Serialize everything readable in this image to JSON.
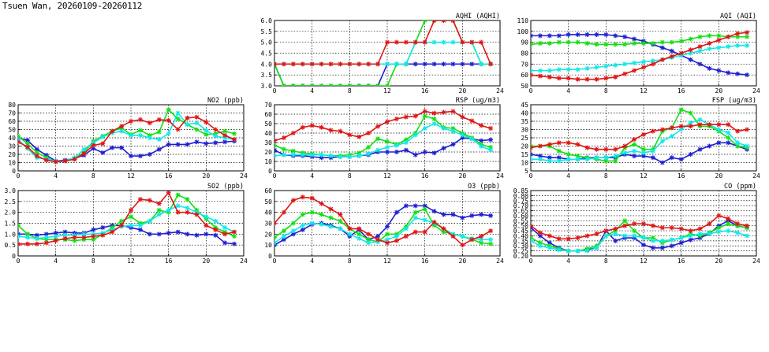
{
  "page_title": "Tsuen Wan, 20260109-20260112",
  "colors": {
    "blue": "#1f1fd0",
    "green": "#11e011",
    "cyan": "#11e8e8",
    "red": "#e01515"
  },
  "chart_data": [
    {
      "id": "aqhi",
      "type": "line",
      "title": "AQHI (AQHI)",
      "xlim": [
        0,
        24
      ],
      "ylim": [
        3,
        6
      ],
      "xticks": [
        "0",
        "4",
        "8",
        "12",
        "16",
        "20",
        "24"
      ],
      "yticks": [
        "3.0",
        "3.5",
        "4.0",
        "4.5",
        "5.0",
        "5.5",
        "6.0"
      ],
      "grid": true,
      "series": [
        {
          "color": "blue",
          "values": [
            4,
            3,
            3,
            3,
            3,
            3,
            3,
            3,
            3,
            3,
            3,
            3,
            4,
            4,
            4,
            4,
            4,
            4,
            4,
            4,
            4,
            4,
            4,
            4
          ]
        },
        {
          "color": "green",
          "values": [
            4,
            3,
            3,
            3,
            3,
            3,
            3,
            3,
            3,
            3,
            3,
            3,
            3,
            4,
            4,
            5,
            6,
            6,
            6,
            6,
            5,
            5,
            4,
            4
          ]
        },
        {
          "color": "cyan",
          "values": [
            4,
            4,
            4,
            4,
            4,
            4,
            4,
            4,
            4,
            4,
            4,
            4,
            4,
            4,
            4,
            5,
            5,
            5,
            5,
            5,
            5,
            5,
            4,
            4
          ]
        },
        {
          "color": "red",
          "values": [
            4,
            4,
            4,
            4,
            4,
            4,
            4,
            4,
            4,
            4,
            4,
            4,
            5,
            5,
            5,
            5,
            5,
            6,
            6,
            6,
            5,
            5,
            5,
            4
          ]
        }
      ]
    },
    {
      "id": "aqi",
      "type": "line",
      "title": "AQI (AQI)",
      "xlim": [
        0,
        24
      ],
      "ylim": [
        50,
        110
      ],
      "xticks": [
        "0",
        "4",
        "8",
        "12",
        "16",
        "20",
        "24"
      ],
      "yticks": [
        "50",
        "60",
        "70",
        "80",
        "90",
        "100",
        "110"
      ],
      "grid": true,
      "series": [
        {
          "color": "blue",
          "values": [
            96,
            96,
            96,
            96,
            97,
            97,
            97,
            97,
            97,
            96,
            95,
            93,
            91,
            88,
            85,
            82,
            78,
            74,
            70,
            66,
            64,
            62,
            61,
            60
          ]
        },
        {
          "color": "green",
          "values": [
            88,
            89,
            89,
            90,
            90,
            90,
            89,
            88,
            88,
            88,
            88,
            89,
            89,
            89,
            90,
            90,
            91,
            93,
            95,
            96,
            96,
            95,
            95,
            95
          ]
        },
        {
          "color": "cyan",
          "values": [
            64,
            64,
            64,
            65,
            65,
            65,
            66,
            67,
            68,
            69,
            70,
            71,
            72,
            73,
            74,
            76,
            78,
            80,
            82,
            84,
            85,
            86,
            87,
            87
          ]
        },
        {
          "color": "red",
          "values": [
            60,
            59,
            58,
            57,
            57,
            56,
            56,
            56,
            57,
            58,
            61,
            64,
            67,
            70,
            74,
            77,
            80,
            83,
            86,
            89,
            92,
            95,
            98,
            99
          ]
        }
      ]
    },
    {
      "id": "no2",
      "type": "line",
      "title": "NO2 (ppb)",
      "xlim": [
        0,
        24
      ],
      "ylim": [
        0,
        80
      ],
      "xticks": [
        "0",
        "4",
        "8",
        "12",
        "16",
        "20",
        "24"
      ],
      "yticks": [
        "0",
        "10",
        "20",
        "30",
        "40",
        "50",
        "60",
        "70",
        "80"
      ],
      "grid": true,
      "series": [
        {
          "color": "blue",
          "values": [
            40,
            37,
            26,
            19,
            12,
            13,
            15,
            19,
            27,
            22,
            28,
            28,
            18,
            18,
            20,
            26,
            32,
            32,
            32,
            35,
            33,
            34,
            35,
            36
          ]
        },
        {
          "color": "green",
          "values": [
            42,
            33,
            22,
            16,
            11,
            12,
            15,
            22,
            36,
            42,
            48,
            52,
            44,
            49,
            43,
            47,
            74,
            63,
            56,
            50,
            44,
            45,
            48,
            45
          ]
        },
        {
          "color": "cyan",
          "values": [
            38,
            27,
            16,
            14,
            12,
            12,
            16,
            26,
            34,
            41,
            46,
            48,
            43,
            43,
            40,
            38,
            45,
            70,
            56,
            58,
            49,
            42,
            40,
            38
          ]
        },
        {
          "color": "red",
          "values": [
            35,
            29,
            18,
            13,
            11,
            12,
            14,
            21,
            31,
            33,
            48,
            54,
            60,
            62,
            58,
            62,
            61,
            50,
            64,
            65,
            59,
            50,
            43,
            38
          ]
        }
      ]
    },
    {
      "id": "rsp",
      "type": "line",
      "title": "RSP (ug/m3)",
      "xlim": [
        0,
        24
      ],
      "ylim": [
        0,
        70
      ],
      "xticks": [
        "0",
        "4",
        "8",
        "12",
        "16",
        "20",
        "24"
      ],
      "yticks": [
        "0",
        "10",
        "20",
        "30",
        "40",
        "50",
        "60",
        "70"
      ],
      "grid": true,
      "series": [
        {
          "color": "blue",
          "values": [
            22,
            17,
            16,
            16,
            15,
            14,
            14,
            15,
            15,
            16,
            17,
            20,
            20,
            20,
            22,
            17,
            20,
            19,
            24,
            28,
            35,
            34,
            32,
            33
          ]
        },
        {
          "color": "green",
          "values": [
            27,
            23,
            21,
            19,
            18,
            17,
            16,
            16,
            17,
            19,
            25,
            34,
            31,
            28,
            33,
            40,
            58,
            55,
            46,
            45,
            40,
            35,
            28,
            25
          ]
        },
        {
          "color": "cyan",
          "values": [
            16,
            17,
            17,
            17,
            17,
            17,
            16,
            15,
            15,
            16,
            18,
            22,
            25,
            27,
            30,
            38,
            45,
            50,
            45,
            42,
            38,
            34,
            26,
            22
          ]
        },
        {
          "color": "red",
          "values": [
            32,
            35,
            40,
            46,
            48,
            46,
            43,
            42,
            38,
            36,
            40,
            47,
            52,
            55,
            57,
            58,
            63,
            61,
            62,
            63,
            57,
            53,
            48,
            45
          ]
        }
      ]
    },
    {
      "id": "fsp",
      "type": "line",
      "title": "FSP (ug/m3)",
      "xlim": [
        0,
        24
      ],
      "ylim": [
        5,
        45
      ],
      "xticks": [
        "0",
        "4",
        "8",
        "12",
        "16",
        "20",
        "24"
      ],
      "yticks": [
        "5",
        "10",
        "15",
        "20",
        "25",
        "30",
        "35",
        "40",
        "45"
      ],
      "grid": true,
      "series": [
        {
          "color": "blue",
          "values": [
            15,
            14,
            13,
            13,
            12,
            12,
            13,
            13,
            13,
            13,
            15,
            14,
            14,
            13,
            10,
            13,
            12,
            15,
            18,
            20,
            22,
            22,
            20,
            18
          ]
        },
        {
          "color": "green",
          "values": [
            20,
            20,
            20,
            17,
            15,
            14,
            13,
            12,
            11,
            11,
            19,
            21,
            18,
            18,
            29,
            31,
            42,
            40,
            32,
            32,
            29,
            25,
            20,
            19
          ]
        },
        {
          "color": "cyan",
          "values": [
            12,
            12,
            11,
            11,
            12,
            12,
            12,
            13,
            13,
            14,
            16,
            17,
            16,
            17,
            23,
            26,
            30,
            34,
            36,
            33,
            30,
            28,
            22,
            20
          ]
        },
        {
          "color": "red",
          "values": [
            19,
            20,
            21,
            22,
            22,
            21,
            19,
            18,
            18,
            18,
            20,
            24,
            27,
            29,
            30,
            31,
            32,
            32,
            33,
            33,
            33,
            33,
            29,
            30
          ]
        }
      ]
    },
    {
      "id": "so2",
      "type": "line",
      "title": "SO2 (ppb)",
      "xlim": [
        0,
        24
      ],
      "ylim": [
        0,
        3
      ],
      "xticks": [
        "0",
        "4",
        "8",
        "12",
        "16",
        "20",
        "24"
      ],
      "yticks": [
        "0",
        "0.5",
        "1.0",
        "1.5",
        "2.0",
        "2.5",
        "3.0"
      ],
      "grid": true,
      "series": [
        {
          "color": "blue",
          "values": [
            1.0,
            1.0,
            0.95,
            1.0,
            1.05,
            1.1,
            1.05,
            1.05,
            1.2,
            1.3,
            1.4,
            1.4,
            1.3,
            1.2,
            1.0,
            1.0,
            1.05,
            1.1,
            1.0,
            0.95,
            1.0,
            0.95,
            0.6,
            0.55
          ]
        },
        {
          "color": "green",
          "values": [
            1.4,
            1.0,
            0.8,
            0.75,
            0.75,
            0.75,
            0.7,
            0.75,
            0.75,
            1.0,
            1.3,
            1.6,
            1.8,
            1.5,
            1.6,
            2.1,
            2.0,
            2.8,
            2.6,
            2.1,
            1.7,
            1.3,
            1.1,
            0.9
          ]
        },
        {
          "color": "cyan",
          "values": [
            0.9,
            0.85,
            0.8,
            0.85,
            0.9,
            0.95,
            0.95,
            1.0,
            1.0,
            1.05,
            1.2,
            1.35,
            1.4,
            1.4,
            1.6,
            1.9,
            2.1,
            2.3,
            2.2,
            2.0,
            1.8,
            1.6,
            1.3,
            1.1
          ]
        },
        {
          "color": "red",
          "values": [
            0.55,
            0.55,
            0.55,
            0.6,
            0.7,
            0.8,
            0.85,
            0.85,
            0.9,
            0.95,
            1.1,
            1.4,
            2.1,
            2.6,
            2.55,
            2.4,
            2.9,
            2.0,
            2.0,
            1.9,
            1.4,
            1.2,
            1.0,
            1.1
          ]
        }
      ]
    },
    {
      "id": "o3",
      "type": "line",
      "title": "O3 (ppb)",
      "xlim": [
        0,
        24
      ],
      "ylim": [
        0,
        60
      ],
      "xticks": [
        "0",
        "4",
        "8",
        "12",
        "16",
        "20",
        "24"
      ],
      "yticks": [
        "0",
        "10",
        "20",
        "30",
        "40",
        "50",
        "60"
      ],
      "grid": true,
      "series": [
        {
          "color": "blue",
          "values": [
            10,
            15,
            20,
            24,
            29,
            30,
            28,
            25,
            18,
            24,
            15,
            18,
            27,
            40,
            46,
            46,
            46,
            41,
            38,
            38,
            35,
            37,
            38,
            37
          ]
        },
        {
          "color": "green",
          "values": [
            17,
            23,
            30,
            38,
            40,
            38,
            35,
            32,
            25,
            20,
            15,
            13,
            20,
            20,
            27,
            40,
            43,
            28,
            22,
            20,
            18,
            15,
            12,
            11
          ]
        },
        {
          "color": "cyan",
          "values": [
            12,
            18,
            23,
            28,
            30,
            29,
            27,
            25,
            20,
            16,
            12,
            13,
            15,
            18,
            25,
            35,
            33,
            30,
            25,
            20,
            18,
            16,
            15,
            15
          ]
        },
        {
          "color": "red",
          "values": [
            30,
            40,
            51,
            54,
            53,
            48,
            43,
            38,
            25,
            25,
            20,
            15,
            12,
            14,
            18,
            22,
            22,
            31,
            25,
            18,
            10,
            15,
            18,
            23
          ]
        }
      ]
    },
    {
      "id": "co",
      "type": "line",
      "title": "CO (ppm)",
      "xlim": [
        0,
        24
      ],
      "ylim": [
        0.2,
        0.85
      ],
      "xticks": [
        "0",
        "4",
        "8",
        "12",
        "16",
        "20",
        "24"
      ],
      "yticks": [
        "0.20",
        "0.25",
        "0.30",
        "0.35",
        "0.40",
        "0.45",
        "0.50",
        "0.55",
        "0.60",
        "0.65",
        "0.70",
        "0.75",
        "0.80",
        "0.85"
      ],
      "grid": true,
      "series": [
        {
          "color": "blue",
          "values": [
            0.48,
            0.4,
            0.33,
            0.28,
            0.25,
            0.25,
            0.26,
            0.28,
            0.45,
            0.35,
            0.38,
            0.38,
            0.31,
            0.28,
            0.28,
            0.3,
            0.33,
            0.36,
            0.38,
            0.42,
            0.5,
            0.55,
            0.5,
            0.48
          ]
        },
        {
          "color": "green",
          "values": [
            0.38,
            0.33,
            0.3,
            0.27,
            0.25,
            0.25,
            0.27,
            0.3,
            0.4,
            0.45,
            0.55,
            0.45,
            0.38,
            0.38,
            0.33,
            0.36,
            0.38,
            0.42,
            0.4,
            0.43,
            0.48,
            0.52,
            0.5,
            0.48
          ]
        },
        {
          "color": "cyan",
          "values": [
            0.35,
            0.3,
            0.28,
            0.26,
            0.25,
            0.25,
            0.25,
            0.28,
            0.4,
            0.42,
            0.4,
            0.4,
            0.38,
            0.35,
            0.35,
            0.36,
            0.38,
            0.4,
            0.42,
            0.42,
            0.44,
            0.45,
            0.43,
            0.4
          ]
        },
        {
          "color": "red",
          "values": [
            0.5,
            0.43,
            0.4,
            0.37,
            0.37,
            0.38,
            0.4,
            0.42,
            0.45,
            0.47,
            0.5,
            0.52,
            0.52,
            0.5,
            0.48,
            0.48,
            0.47,
            0.45,
            0.47,
            0.52,
            0.6,
            0.57,
            0.52,
            0.5
          ]
        }
      ]
    }
  ]
}
